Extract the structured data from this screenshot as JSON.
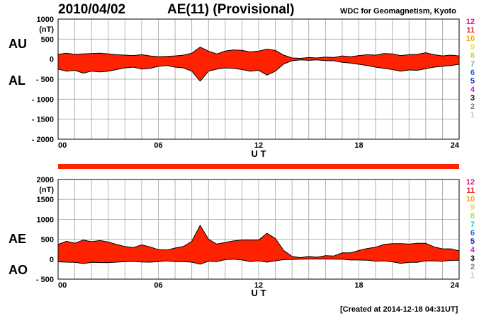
{
  "header": {
    "date": "2010/04/02",
    "title": "AE(11) (Provisional)",
    "source": "WDC for Geomagnetism, Kyoto"
  },
  "footer": {
    "created": "[Created at 2014-12-18 04:31UT]"
  },
  "legend": {
    "items": [
      {
        "label": "12",
        "color": "#e8107a"
      },
      {
        "label": "11",
        "color": "#ee1c1c"
      },
      {
        "label": "10",
        "color": "#f7a400"
      },
      {
        "label": "9",
        "color": "#e8e81c"
      },
      {
        "label": "8",
        "color": "#a6e81c"
      },
      {
        "label": "7",
        "color": "#20c8c8"
      },
      {
        "label": "6",
        "color": "#1c64f0"
      },
      {
        "label": "5",
        "color": "#2020b0"
      },
      {
        "label": "4",
        "color": "#c820c8"
      },
      {
        "label": "3",
        "color": "#000000"
      },
      {
        "label": "2",
        "color": "#7a7a7a"
      },
      {
        "label": "1",
        "color": "#c8c8c8"
      }
    ]
  },
  "colors": {
    "fill": "#ff2200",
    "line": "#000000",
    "grid": "#a0a0a0",
    "bar": "#ff2200"
  },
  "chart_data": [
    {
      "type": "area",
      "row_labels": [
        "AU",
        "AL"
      ],
      "xlabel": "U T",
      "ylabel": "(nT)",
      "xlim": [
        0,
        24
      ],
      "ylim": [
        -2000,
        1000
      ],
      "x_ticks": [
        "00",
        "06",
        "12",
        "18",
        "24"
      ],
      "y_ticks": [
        "1000",
        "500",
        "0",
        "- 500",
        "- 1000",
        "- 1500",
        "- 2000"
      ],
      "grid": true,
      "series": [
        {
          "name": "AU",
          "x": [
            0,
            0.5,
            1,
            1.5,
            2,
            2.5,
            3,
            3.5,
            4,
            4.5,
            5,
            5.5,
            6,
            6.5,
            7,
            7.5,
            8,
            8.5,
            9,
            9.5,
            10,
            10.5,
            11,
            11.5,
            12,
            12.5,
            13,
            13.5,
            14,
            14.5,
            15,
            15.5,
            16,
            16.5,
            17,
            17.5,
            18,
            18.5,
            19,
            19.5,
            20,
            20.5,
            21,
            21.5,
            22,
            22.5,
            23,
            23.5,
            24
          ],
          "values": [
            120,
            150,
            120,
            130,
            140,
            150,
            130,
            110,
            100,
            90,
            110,
            80,
            60,
            70,
            80,
            100,
            150,
            300,
            200,
            130,
            200,
            230,
            220,
            180,
            200,
            250,
            220,
            100,
            30,
            20,
            40,
            30,
            50,
            40,
            80,
            60,
            90,
            110,
            100,
            140,
            130,
            90,
            110,
            120,
            160,
            110,
            80,
            100,
            80
          ]
        },
        {
          "name": "AL",
          "x": [
            0,
            0.5,
            1,
            1.5,
            2,
            2.5,
            3,
            3.5,
            4,
            4.5,
            5,
            5.5,
            6,
            6.5,
            7,
            7.5,
            8,
            8.5,
            9,
            9.5,
            10,
            10.5,
            11,
            11.5,
            12,
            12.5,
            13,
            13.5,
            14,
            14.5,
            15,
            15.5,
            16,
            16.5,
            17,
            17.5,
            18,
            18.5,
            19,
            19.5,
            20,
            20.5,
            21,
            21.5,
            22,
            22.5,
            23,
            23.5,
            24
          ],
          "values": [
            -250,
            -300,
            -280,
            -350,
            -300,
            -320,
            -300,
            -260,
            -220,
            -200,
            -250,
            -230,
            -180,
            -160,
            -200,
            -220,
            -300,
            -550,
            -300,
            -250,
            -220,
            -230,
            -260,
            -300,
            -280,
            -400,
            -300,
            -120,
            -40,
            -20,
            -30,
            -20,
            -40,
            -40,
            -80,
            -100,
            -130,
            -160,
            -200,
            -230,
            -260,
            -300,
            -270,
            -280,
            -240,
            -200,
            -180,
            -160,
            -130
          ]
        }
      ]
    },
    {
      "type": "area",
      "row_labels": [
        "AE",
        "AO"
      ],
      "xlabel": "U T",
      "ylabel": "(nT)",
      "xlim": [
        0,
        24
      ],
      "ylim": [
        -500,
        2000
      ],
      "x_ticks": [
        "00",
        "06",
        "12",
        "18",
        "24"
      ],
      "y_ticks": [
        "2000",
        "1500",
        "1000",
        "500",
        "0",
        "- 500"
      ],
      "grid": true,
      "series": [
        {
          "name": "AE",
          "x": [
            0,
            0.5,
            1,
            1.5,
            2,
            2.5,
            3,
            3.5,
            4,
            4.5,
            5,
            5.5,
            6,
            6.5,
            7,
            7.5,
            8,
            8.5,
            9,
            9.5,
            10,
            10.5,
            11,
            11.5,
            12,
            12.5,
            13,
            13.5,
            14,
            14.5,
            15,
            15.5,
            16,
            16.5,
            17,
            17.5,
            18,
            18.5,
            19,
            19.5,
            20,
            20.5,
            21,
            21.5,
            22,
            22.5,
            23,
            23.5,
            24
          ],
          "values": [
            370,
            450,
            400,
            480,
            440,
            470,
            430,
            370,
            320,
            290,
            360,
            310,
            240,
            230,
            280,
            320,
            450,
            850,
            500,
            380,
            420,
            460,
            480,
            480,
            480,
            650,
            520,
            220,
            70,
            40,
            70,
            50,
            90,
            80,
            160,
            160,
            220,
            270,
            300,
            370,
            390,
            390,
            380,
            400,
            400,
            310,
            260,
            260,
            210
          ]
        },
        {
          "name": "AO",
          "x": [
            0,
            0.5,
            1,
            1.5,
            2,
            2.5,
            3,
            3.5,
            4,
            4.5,
            5,
            5.5,
            6,
            6.5,
            7,
            7.5,
            8,
            8.5,
            9,
            9.5,
            10,
            10.5,
            11,
            11.5,
            12,
            12.5,
            13,
            13.5,
            14,
            14.5,
            15,
            15.5,
            16,
            16.5,
            17,
            17.5,
            18,
            18.5,
            19,
            19.5,
            20,
            20.5,
            21,
            21.5,
            22,
            22.5,
            23,
            23.5,
            24
          ],
          "values": [
            -65,
            -75,
            -80,
            -110,
            -80,
            -85,
            -85,
            -75,
            -60,
            -55,
            -70,
            -75,
            -60,
            -45,
            -60,
            -60,
            -75,
            -125,
            -50,
            -60,
            -10,
            0,
            -20,
            -60,
            -40,
            -75,
            -40,
            -10,
            -5,
            0,
            5,
            5,
            5,
            0,
            0,
            -20,
            -20,
            -25,
            -50,
            -45,
            -65,
            -105,
            -80,
            -80,
            -40,
            -45,
            -50,
            -30,
            -25
          ]
        }
      ]
    }
  ]
}
